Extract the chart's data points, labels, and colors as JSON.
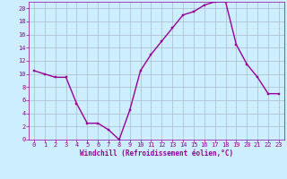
{
  "x": [
    0,
    1,
    2,
    3,
    4,
    5,
    6,
    7,
    8,
    9,
    10,
    11,
    12,
    13,
    14,
    15,
    16,
    17,
    18,
    19,
    20,
    21,
    22,
    23
  ],
  "y": [
    10.5,
    10.0,
    9.5,
    9.5,
    5.5,
    2.5,
    2.5,
    1.5,
    0.0,
    4.5,
    10.5,
    13.0,
    15.0,
    17.0,
    19.0,
    19.5,
    20.5,
    21.0,
    21.0,
    14.5,
    11.5,
    9.5,
    7.0,
    7.0
  ],
  "line_color": "#990099",
  "marker": "s",
  "marker_size": 1.8,
  "bg_color": "#cceeff",
  "grid_color": "#aabbcc",
  "xlabel": "Windchill (Refroidissement éolien,°C)",
  "xlabel_color": "#990099",
  "tick_color": "#990099",
  "xlim": [
    -0.5,
    23.5
  ],
  "ylim": [
    0,
    21
  ],
  "yticks": [
    0,
    2,
    4,
    6,
    8,
    10,
    12,
    14,
    16,
    18,
    20
  ],
  "xticks": [
    0,
    1,
    2,
    3,
    4,
    5,
    6,
    7,
    8,
    9,
    10,
    11,
    12,
    13,
    14,
    15,
    16,
    17,
    18,
    19,
    20,
    21,
    22,
    23
  ],
  "line_width": 1.0,
  "tick_fontsize": 5.0,
  "xlabel_fontsize": 5.5
}
